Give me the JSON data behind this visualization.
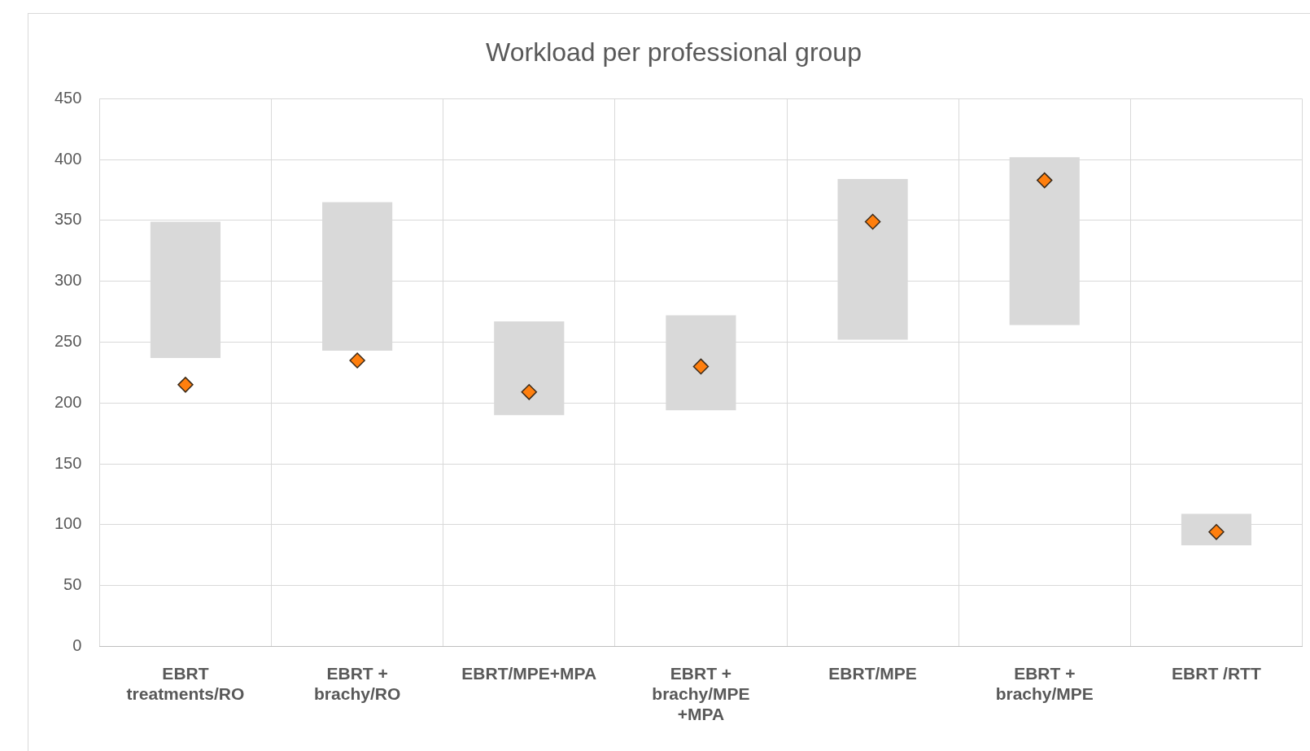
{
  "chart_data": {
    "type": "bar",
    "title": "Workload per professional group",
    "categories": [
      "EBRT treatments/RO",
      "EBRT + brachy/RO",
      "EBRT/MPE+MPA",
      "EBRT + brachy/MPE +MPA",
      "EBRT/MPE",
      "EBRT + brachy/MPE",
      "EBRT /RTT"
    ],
    "series": [
      {
        "color": "#d9d9d9",
        "base": [
          237,
          243,
          190,
          194,
          252,
          264,
          83
        ],
        "values": [
          112,
          122,
          77,
          78,
          132,
          138,
          26
        ]
      },
      {
        "type": "scatter",
        "color": "#ff7f0e",
        "marker": "diamond",
        "x": [
          "EBRT treatments/RO",
          "EBRT + brachy/RO",
          "EBRT/MPE+MPA",
          "EBRT + brachy/MPE +MPA",
          "EBRT/MPE",
          "EBRT + brachy/MPE",
          "EBRT /RTT"
        ],
        "values": [
          215,
          235,
          209,
          230,
          349,
          383,
          94
        ]
      }
    ],
    "ylim": [
      0,
      450
    ],
    "yticks": [
      0,
      50,
      100,
      150,
      200,
      250,
      300,
      350,
      400,
      450
    ],
    "grid": true,
    "legend": false
  }
}
